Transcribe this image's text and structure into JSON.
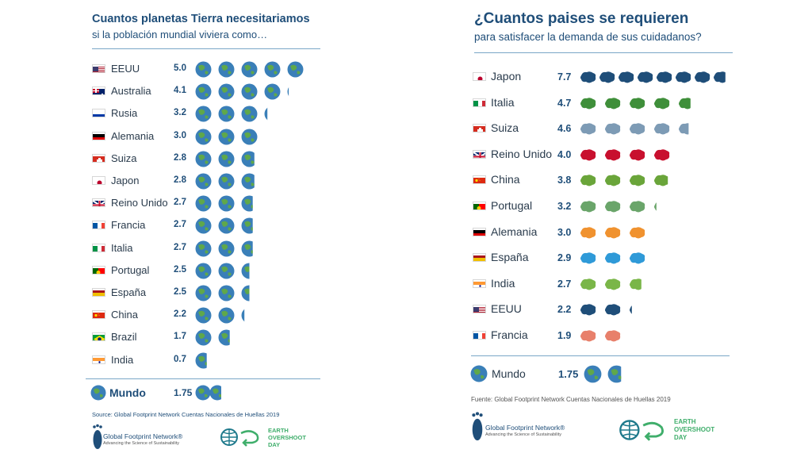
{
  "left": {
    "title": "Cuantos planetas Tierra necesitariamos",
    "subtitle": "si la población mundial viviera como…",
    "source": "Source: Global Footprint Network Cuentas Nacionales de Huellas 2019",
    "world_label": "Mundo",
    "world_value": "1.75"
  },
  "right": {
    "title": "¿Cuantos paises se requieren",
    "subtitle": "para satisfacer la demanda de sus cuidadanos?",
    "source": "Fuente: Global Footprint Network Cuentas Nacionales de Huellas 2019",
    "world_label": "Mundo",
    "world_value": "1.75"
  },
  "logos": {
    "gfn_name": "Global Footprint Network®",
    "gfn_tagline": "Advancing the Science of Sustainability",
    "eod_line1": "EARTH",
    "eod_line2": "OVERSHOOT",
    "eod_line3": "DAY"
  },
  "chart_data": [
    {
      "type": "bar",
      "title": "Cuantos planetas Tierra necesitariamos",
      "subtitle": "si la población mundial viviera como…",
      "unit": "planetas",
      "categories": [
        "EEUU",
        "Australia",
        "Rusia",
        "Alemania",
        "Suiza",
        "Japon",
        "Reino Unido",
        "Francia",
        "Italia",
        "Portugal",
        "España",
        "China",
        "Brazil",
        "India"
      ],
      "values": [
        5.0,
        4.1,
        3.2,
        3.0,
        2.8,
        2.8,
        2.7,
        2.7,
        2.7,
        2.5,
        2.5,
        2.2,
        1.7,
        0.7
      ],
      "labels": [
        "5.0",
        "4.1",
        "3.2",
        "3.0",
        "2.8",
        "2.8",
        "2.7",
        "2.7",
        "2.7",
        "2.5",
        "2.5",
        "2.2",
        "1.7",
        "0.7"
      ],
      "flags": [
        "us",
        "au",
        "ru",
        "de",
        "ch",
        "jp",
        "gb",
        "fr",
        "it",
        "pt",
        "es",
        "cn",
        "br",
        "in"
      ],
      "world": {
        "label": "Mundo",
        "value": 1.75,
        "text": "1.75"
      }
    },
    {
      "type": "bar",
      "title": "¿Cuantos paises se requieren",
      "subtitle": "para satisfacer la demanda de sus cuidadanos?",
      "unit": "paises",
      "categories": [
        "Japon",
        "Italia",
        "Suiza",
        "Reino Unido",
        "China",
        "Portugal",
        "Alemania",
        "España",
        "India",
        "EEUU",
        "Francia"
      ],
      "values": [
        7.7,
        4.7,
        4.6,
        4.0,
        3.8,
        3.2,
        3.0,
        2.9,
        2.7,
        2.2,
        1.9
      ],
      "labels": [
        "7.7",
        "4.7",
        "4.6",
        "4.0",
        "3.8",
        "3.2",
        "3.0",
        "2.9",
        "2.7",
        "2.2",
        "1.9"
      ],
      "flags": [
        "jp",
        "it",
        "ch",
        "gb",
        "cn",
        "pt",
        "de",
        "es",
        "in",
        "us",
        "fr"
      ],
      "icon_colors": [
        "#1f4e79",
        "#3f8f3a",
        "#7d9bb5",
        "#c8102e",
        "#6aa53a",
        "#6aa56a",
        "#f0922f",
        "#2f9ad8",
        "#7ab648",
        "#1f4e79",
        "#e8806b"
      ],
      "world": {
        "label": "Mundo",
        "value": 1.75,
        "text": "1.75"
      }
    }
  ]
}
